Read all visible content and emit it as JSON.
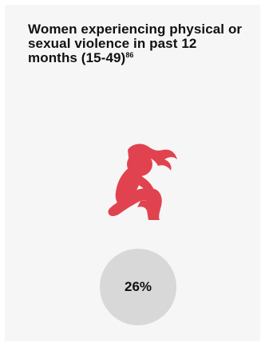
{
  "card": {
    "title": "Women experiencing physical or sexual violence in past 12 months (15-49)",
    "footnote": "86",
    "icon": "distressed-woman-icon",
    "accent_color": "#e0434f",
    "circle_color": "#d8d8d8"
  },
  "stat": {
    "value": "26%"
  }
}
